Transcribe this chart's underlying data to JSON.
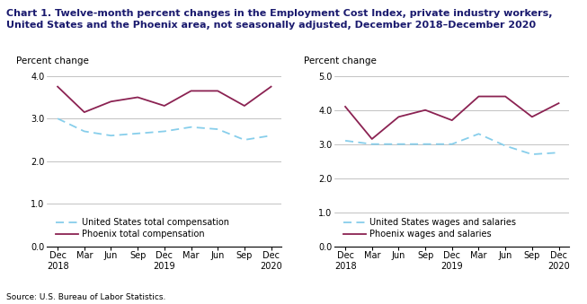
{
  "title_line1": "Chart 1. Twelve-month percent changes in the Employment Cost Index, private industry workers,",
  "title_line2": "United States and the Phoenix area, not seasonally adjusted, December 2018–December 2020",
  "x_labels": [
    "Dec\n2018",
    "Mar",
    "Jun",
    "Sep",
    "Dec\n2019",
    "Mar",
    "Jun",
    "Sep",
    "Dec\n2020"
  ],
  "left_chart": {
    "ylabel": "Percent change",
    "ylim": [
      0.0,
      4.0
    ],
    "yticks": [
      0.0,
      1.0,
      2.0,
      3.0,
      4.0
    ],
    "us_total_comp": [
      3.0,
      2.7,
      2.6,
      2.65,
      2.7,
      2.8,
      2.75,
      2.5,
      2.6
    ],
    "phoenix_total_comp": [
      3.75,
      3.15,
      3.4,
      3.5,
      3.3,
      3.65,
      3.65,
      3.3,
      3.75
    ],
    "legend_us": "United States total compensation",
    "legend_phoenix": "Phoenix total compensation"
  },
  "right_chart": {
    "ylabel": "Percent change",
    "ylim": [
      0.0,
      5.0
    ],
    "yticks": [
      0.0,
      1.0,
      2.0,
      3.0,
      4.0,
      5.0
    ],
    "us_wages": [
      3.1,
      3.0,
      3.0,
      3.0,
      3.0,
      3.3,
      2.95,
      2.7,
      2.75
    ],
    "phoenix_wages": [
      4.1,
      3.15,
      3.8,
      4.0,
      3.7,
      4.4,
      4.4,
      3.8,
      4.2
    ],
    "legend_us": "United States wages and salaries",
    "legend_phoenix": "Phoenix wages and salaries"
  },
  "us_color": "#87CEEB",
  "phoenix_color": "#8B2252",
  "source": "Source: U.S. Bureau of Labor Statistics.",
  "title_fontsize": 8.0,
  "label_fontsize": 7.5,
  "tick_fontsize": 7.0,
  "legend_fontsize": 7.0
}
